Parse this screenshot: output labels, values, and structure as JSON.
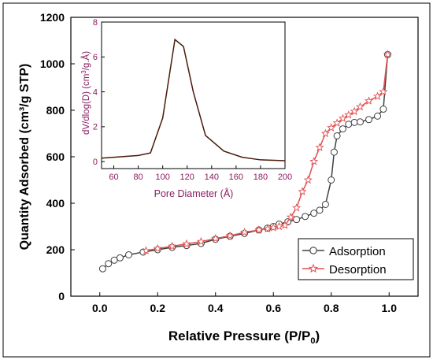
{
  "chart_data": [
    {
      "type": "line",
      "title": "",
      "xlabel_main": "Relative Pressure (P/P",
      "xlabel_sub": "0",
      "xlabel_close": ")",
      "ylabel": "Quantity Adsorbed (cm³/g STP)",
      "xlim": [
        -0.1,
        1.1
      ],
      "ylim": [
        0,
        1200
      ],
      "x_ticks": [
        0.0,
        0.2,
        0.4,
        0.6,
        0.8,
        1.0
      ],
      "x_tick_labels": [
        "0.0",
        "0.2",
        "0.4",
        "0.6",
        "0.8",
        "1.0"
      ],
      "y_ticks": [
        0,
        200,
        400,
        600,
        800,
        1000,
        1200
      ],
      "y_tick_labels": [
        "0",
        "200",
        "400",
        "600",
        "800",
        "1000",
        "1200"
      ],
      "legend_position": "bottom-right",
      "grid": false,
      "series": [
        {
          "name": "Adsorption",
          "color": "#404040",
          "marker": "circle",
          "x": [
            0.01,
            0.03,
            0.05,
            0.07,
            0.1,
            0.15,
            0.2,
            0.25,
            0.3,
            0.35,
            0.4,
            0.45,
            0.5,
            0.55,
            0.58,
            0.6,
            0.62,
            0.65,
            0.68,
            0.71,
            0.74,
            0.76,
            0.78,
            0.8,
            0.81,
            0.82,
            0.84,
            0.86,
            0.88,
            0.9,
            0.93,
            0.96,
            0.98,
            0.995
          ],
          "y": [
            118,
            140,
            155,
            165,
            178,
            190,
            200,
            210,
            218,
            227,
            245,
            258,
            270,
            285,
            293,
            300,
            310,
            320,
            330,
            343,
            357,
            370,
            395,
            500,
            620,
            690,
            720,
            740,
            748,
            750,
            760,
            775,
            805,
            1040
          ]
        },
        {
          "name": "Desorption",
          "color": "#E05050",
          "marker": "star",
          "x": [
            0.995,
            0.98,
            0.96,
            0.93,
            0.9,
            0.88,
            0.86,
            0.84,
            0.82,
            0.8,
            0.78,
            0.76,
            0.74,
            0.72,
            0.7,
            0.68,
            0.66,
            0.64,
            0.62,
            0.6,
            0.58,
            0.55,
            0.5,
            0.45,
            0.4,
            0.35,
            0.3,
            0.25,
            0.2,
            0.16
          ],
          "y": [
            1040,
            880,
            860,
            840,
            815,
            795,
            780,
            765,
            745,
            725,
            700,
            640,
            580,
            500,
            450,
            380,
            340,
            305,
            300,
            295,
            290,
            285,
            275,
            260,
            248,
            235,
            225,
            215,
            205,
            196
          ]
        }
      ]
    },
    {
      "type": "line",
      "title": "",
      "xlabel": "Pore Diameter (Å)",
      "ylabel_main": "dV/dlog(D) (cm",
      "ylabel_sup": "3",
      "ylabel_close": "/g.Å)",
      "xlim": [
        50,
        200
      ],
      "ylim": [
        -0.4,
        8
      ],
      "x_ticks": [
        60,
        80,
        100,
        120,
        140,
        160,
        180,
        200
      ],
      "x_tick_labels": [
        "60",
        "80",
        "100",
        "120",
        "140",
        "160",
        "180",
        "200"
      ],
      "y_ticks": [
        0,
        2,
        4,
        6,
        8
      ],
      "y_tick_labels": [
        "0",
        "2",
        "4",
        "6",
        "8"
      ],
      "grid": false,
      "series": [
        {
          "color": "#4A1A0A",
          "x": [
            50,
            60,
            70,
            80,
            90,
            100,
            110,
            117,
            125,
            135,
            150,
            165,
            180,
            200
          ],
          "y": [
            0.2,
            0.25,
            0.3,
            0.35,
            0.5,
            2.5,
            7.0,
            6.6,
            4.0,
            1.5,
            0.6,
            0.25,
            0.1,
            0.05
          ]
        }
      ]
    }
  ]
}
